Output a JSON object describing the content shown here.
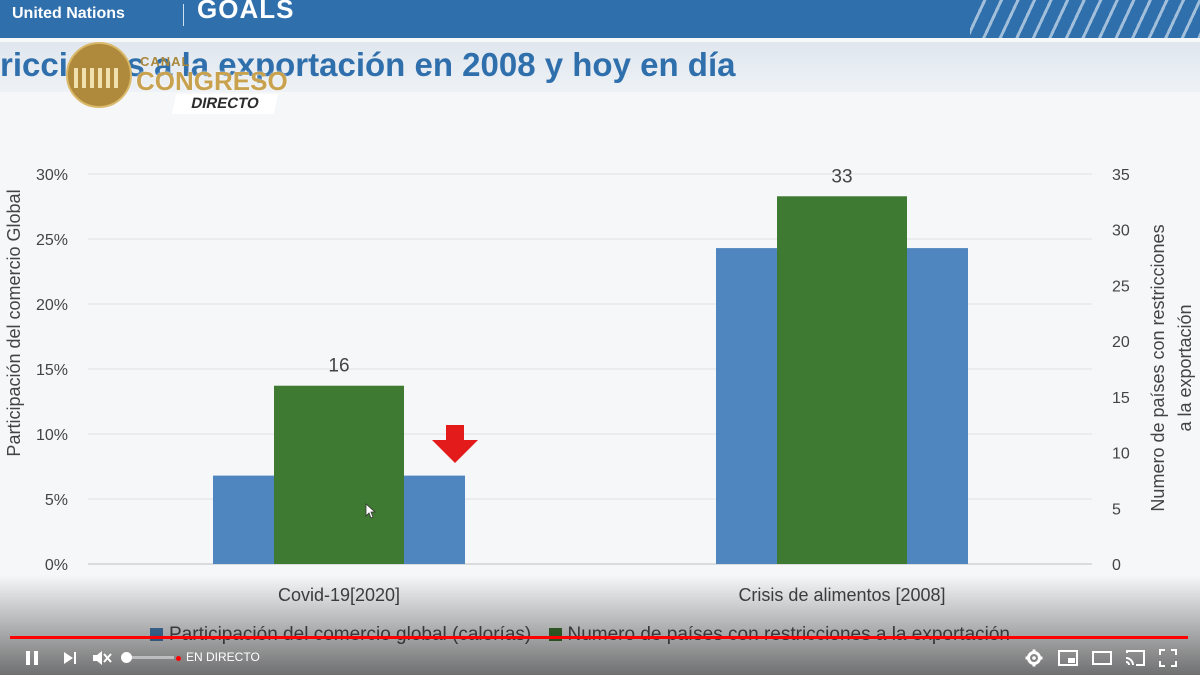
{
  "banner": {
    "org_text": "United Nations",
    "goals_text": "GOALS",
    "color": "#2f6fac"
  },
  "slide_title": "ricciones a la exportación en 2008 y hoy en día",
  "channel_logo": {
    "canal": "CANAL",
    "congreso": "CONGRESO",
    "directo": "DIRECTO"
  },
  "chart_data": {
    "type": "bar",
    "categories": [
      "Covid-19[2020]",
      "Crisis de alimentos [2008]"
    ],
    "series": [
      {
        "name": "Participación del comercio global (calorías)",
        "axis": "left",
        "color": "#4f86bf",
        "values": [
          0.068,
          0.243
        ]
      },
      {
        "name": "Numero de países con restricciones a la exportación",
        "axis": "right",
        "color": "#3f7a32",
        "values": [
          16,
          33
        ]
      }
    ],
    "data_labels": [
      "16",
      "33"
    ],
    "ylabel": "Participación del comercio Global",
    "ylabel2_lines": [
      "Numero de países con restricciones",
      "a la exportación"
    ],
    "ylim": [
      0,
      0.3
    ],
    "ylim2": [
      0,
      35
    ],
    "yticks": [
      "0%",
      "5%",
      "10%",
      "15%",
      "20%",
      "25%",
      "30%"
    ],
    "yticks2": [
      "0",
      "5",
      "10",
      "15",
      "20",
      "25",
      "30",
      "35"
    ],
    "grid": true,
    "legend_position": "bottom",
    "annotation": "red-down-arrow next to Covid-19 bar"
  },
  "player": {
    "live_label": "EN DIRECTO",
    "progress": 1.0,
    "controls": [
      "pause-icon",
      "next-icon",
      "mute-icon",
      "settings-icon",
      "miniplayer-icon",
      "theater-icon",
      "cast-icon",
      "fullscreen-icon"
    ]
  }
}
